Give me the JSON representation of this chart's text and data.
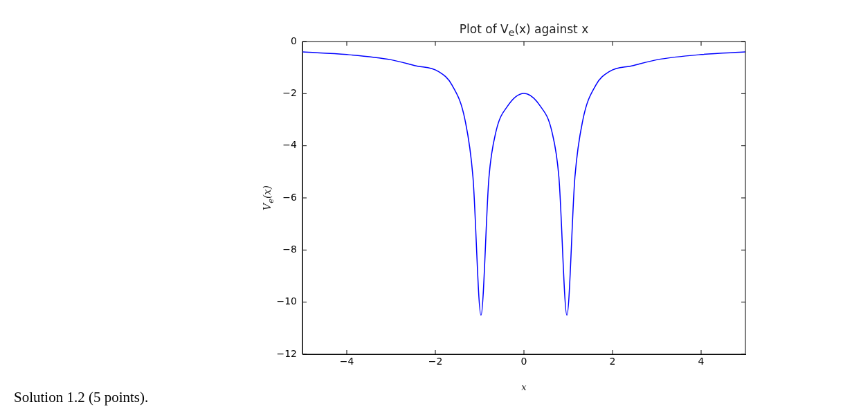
{
  "chart_data": {
    "type": "line",
    "title": "Plot of V$_{e}$(x) against x",
    "xlabel": "x",
    "ylabel": "V$_{e}$(x)",
    "annotations": [
      "Solution 1.2 (5 points)."
    ],
    "x": [
      -5,
      -4,
      -3,
      -2.45,
      -1.93,
      -1.62,
      -1.33,
      -1.15,
      -0.97,
      -0.79,
      -0.63,
      -0.37,
      0,
      0.37,
      0.63,
      0.79,
      0.97,
      1.15,
      1.33,
      1.62,
      1.93,
      2.45,
      3,
      4,
      5
    ],
    "series": [
      {
        "color": "#0000ff",
        "values": [
          -0.4,
          -0.5,
          -0.7,
          -0.93,
          -1.15,
          -1.68,
          -3.01,
          -5.22,
          -10.5,
          -5.22,
          -3.45,
          -2.48,
          -1.99,
          -2.48,
          -3.45,
          -5.22,
          -10.5,
          -5.22,
          -3.01,
          -1.68,
          -1.15,
          -0.93,
          -0.7,
          -0.5,
          -0.4
        ]
      }
    ],
    "xlim": [
      -5,
      5
    ],
    "xticks": [
      -4,
      -2,
      0,
      2,
      4
    ],
    "ylim": [
      -12,
      0
    ],
    "yticks": [
      -12,
      -10,
      -8,
      -6,
      -4,
      -2,
      0
    ],
    "grid": false,
    "legend": false,
    "marker": "none",
    "line_style": "solid"
  }
}
